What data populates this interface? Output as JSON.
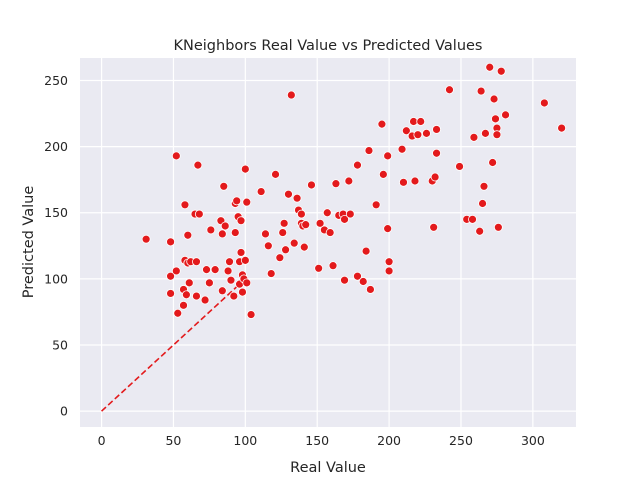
{
  "chart_data": {
    "type": "scatter",
    "title": "KNeighbors Real Value vs Predicted Values",
    "xlabel": "Real Value",
    "ylabel": "Predicted Value",
    "xlim": [
      -15,
      330
    ],
    "ylim": [
      -12,
      267
    ],
    "xticks": [
      0,
      50,
      100,
      150,
      200,
      250,
      300
    ],
    "yticks": [
      0,
      50,
      100,
      150,
      200,
      250
    ],
    "grid": true,
    "point_color": "#e31a1c",
    "background_color": "#eaeaf2",
    "reference_line": {
      "x": [
        0,
        100
      ],
      "y": [
        0,
        100
      ],
      "style": "dashed",
      "color": "#e31a1c"
    },
    "points": [
      [
        31,
        130
      ],
      [
        48,
        128
      ],
      [
        48,
        102
      ],
      [
        48,
        89
      ],
      [
        52,
        193
      ],
      [
        52,
        106
      ],
      [
        53,
        74
      ],
      [
        57,
        80
      ],
      [
        57,
        92
      ],
      [
        58,
        156
      ],
      [
        58,
        114
      ],
      [
        59,
        88
      ],
      [
        60,
        112
      ],
      [
        60,
        133
      ],
      [
        61,
        97
      ],
      [
        62,
        113
      ],
      [
        65,
        149
      ],
      [
        66,
        87
      ],
      [
        66,
        113
      ],
      [
        67,
        186
      ],
      [
        68,
        149
      ],
      [
        72,
        84
      ],
      [
        73,
        107
      ],
      [
        75,
        97
      ],
      [
        76,
        137
      ],
      [
        79,
        107
      ],
      [
        83,
        144
      ],
      [
        84,
        134
      ],
      [
        84,
        91
      ],
      [
        85,
        170
      ],
      [
        86,
        140
      ],
      [
        88,
        106
      ],
      [
        89,
        113
      ],
      [
        90,
        99
      ],
      [
        92,
        87
      ],
      [
        93,
        135
      ],
      [
        93,
        157
      ],
      [
        94,
        159
      ],
      [
        95,
        147
      ],
      [
        96,
        96
      ],
      [
        96,
        113
      ],
      [
        97,
        144
      ],
      [
        97,
        120
      ],
      [
        98,
        103
      ],
      [
        98,
        90
      ],
      [
        99,
        100
      ],
      [
        100,
        183
      ],
      [
        100,
        114
      ],
      [
        101,
        97
      ],
      [
        101,
        158
      ],
      [
        104,
        73
      ],
      [
        111,
        166
      ],
      [
        114,
        134
      ],
      [
        116,
        125
      ],
      [
        118,
        104
      ],
      [
        121,
        179
      ],
      [
        124,
        116
      ],
      [
        126,
        135
      ],
      [
        127,
        142
      ],
      [
        128,
        122
      ],
      [
        130,
        164
      ],
      [
        132,
        239
      ],
      [
        134,
        127
      ],
      [
        136,
        161
      ],
      [
        137,
        152
      ],
      [
        139,
        149
      ],
      [
        139,
        142
      ],
      [
        140,
        140
      ],
      [
        141,
        124
      ],
      [
        142,
        141
      ],
      [
        146,
        171
      ],
      [
        151,
        108
      ],
      [
        152,
        142
      ],
      [
        155,
        137
      ],
      [
        157,
        150
      ],
      [
        159,
        135
      ],
      [
        161,
        110
      ],
      [
        163,
        172
      ],
      [
        165,
        148
      ],
      [
        168,
        149
      ],
      [
        169,
        99
      ],
      [
        169,
        145
      ],
      [
        172,
        174
      ],
      [
        173,
        149
      ],
      [
        178,
        102
      ],
      [
        178,
        186
      ],
      [
        182,
        98
      ],
      [
        184,
        121
      ],
      [
        186,
        197
      ],
      [
        187,
        92
      ],
      [
        191,
        156
      ],
      [
        195,
        217
      ],
      [
        196,
        179
      ],
      [
        199,
        193
      ],
      [
        199,
        138
      ],
      [
        200,
        106
      ],
      [
        200,
        113
      ],
      [
        209,
        198
      ],
      [
        210,
        173
      ],
      [
        212,
        212
      ],
      [
        216,
        208
      ],
      [
        217,
        219
      ],
      [
        218,
        174
      ],
      [
        220,
        209
      ],
      [
        222,
        219
      ],
      [
        226,
        210
      ],
      [
        230,
        174
      ],
      [
        231,
        139
      ],
      [
        232,
        177
      ],
      [
        233,
        195
      ],
      [
        233,
        213
      ],
      [
        242,
        243
      ],
      [
        249,
        185
      ],
      [
        254,
        145
      ],
      [
        258,
        145
      ],
      [
        259,
        207
      ],
      [
        263,
        136
      ],
      [
        264,
        242
      ],
      [
        265,
        157
      ],
      [
        266,
        170
      ],
      [
        267,
        210
      ],
      [
        270,
        260
      ],
      [
        272,
        188
      ],
      [
        273,
        236
      ],
      [
        274,
        221
      ],
      [
        275,
        214
      ],
      [
        275,
        209
      ],
      [
        276,
        139
      ],
      [
        278,
        257
      ],
      [
        281,
        224
      ],
      [
        308,
        233
      ],
      [
        320,
        214
      ]
    ]
  }
}
